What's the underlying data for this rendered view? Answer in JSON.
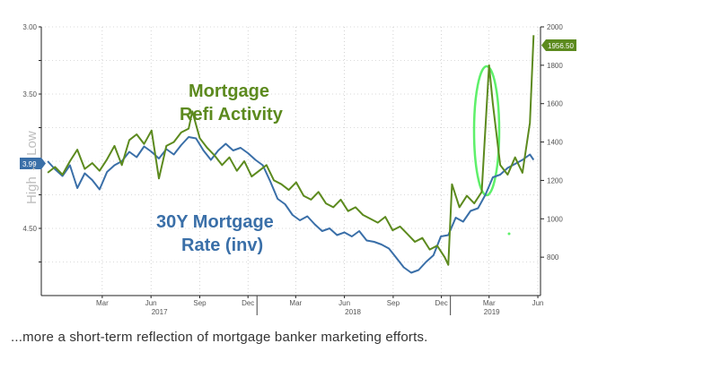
{
  "caption": "...more a short-term reflection of mortgage banker marketing efforts.",
  "colors": {
    "refi": "#5c8a1e",
    "rate": "#3a6fa8",
    "highlight": "#5ef06a",
    "grid": "#b5b5b5"
  },
  "chart_data": {
    "type": "line",
    "annotations": {
      "refi_label": [
        "Mortgage",
        "Refi Activity"
      ],
      "rate_label": [
        "30Y Mortgage",
        "Rate (inv)"
      ],
      "left_axis_title": "High ← Low",
      "highlight": "circled spike in refi activity, early 2019"
    },
    "x_axis": {
      "months": [
        "Mar",
        "Jun",
        "Sep",
        "Dec",
        "Mar",
        "Jun",
        "Sep",
        "Dec",
        "Mar",
        "Jun"
      ],
      "years": [
        "2017",
        "2018",
        "2019"
      ]
    },
    "left_axis": {
      "inverted": true,
      "range": [
        3.0,
        5.0
      ],
      "ticks": [
        "3.00",
        "3.50",
        "4.50"
      ],
      "last_value_label": "3.99"
    },
    "right_axis": {
      "range": [
        600,
        2000
      ],
      "ticks": [
        "2000",
        "1800",
        "1600",
        "1400",
        "1200",
        "1000",
        "800"
      ],
      "last_value_label": "1956.50"
    },
    "grid": true,
    "series": [
      {
        "name": "Mortgage Refi Activity",
        "axis": "right",
        "x": [
          "2016-12-02",
          "2016-12-16",
          "2016-12-30",
          "2017-01-13",
          "2017-01-27",
          "2017-02-10",
          "2017-02-24",
          "2017-03-10",
          "2017-03-24",
          "2017-04-07",
          "2017-04-21",
          "2017-05-05",
          "2017-05-19",
          "2017-06-02",
          "2017-06-16",
          "2017-06-30",
          "2017-07-14",
          "2017-07-28",
          "2017-08-11",
          "2017-08-25",
          "2017-09-01",
          "2017-09-15",
          "2017-09-29",
          "2017-10-13",
          "2017-10-27",
          "2017-11-10",
          "2017-11-24",
          "2017-12-08",
          "2017-12-22",
          "2018-01-05",
          "2018-01-19",
          "2018-02-02",
          "2018-02-16",
          "2018-03-02",
          "2018-03-16",
          "2018-03-30",
          "2018-04-13",
          "2018-04-27",
          "2018-05-11",
          "2018-05-25",
          "2018-06-08",
          "2018-06-22",
          "2018-07-06",
          "2018-07-20",
          "2018-08-03",
          "2018-08-17",
          "2018-08-31",
          "2018-09-14",
          "2018-09-28",
          "2018-10-12",
          "2018-10-26",
          "2018-11-09",
          "2018-11-23",
          "2018-12-07",
          "2018-12-21",
          "2018-12-28",
          "2019-01-04",
          "2019-01-18",
          "2019-02-01",
          "2019-02-15",
          "2019-03-01",
          "2019-03-15",
          "2019-03-22",
          "2019-04-05",
          "2019-04-19",
          "2019-05-03",
          "2019-05-17",
          "2019-05-31",
          "2019-06-07"
        ],
        "values": [
          1240,
          1270,
          1230,
          1300,
          1360,
          1260,
          1290,
          1250,
          1310,
          1380,
          1280,
          1410,
          1440,
          1390,
          1460,
          1210,
          1380,
          1400,
          1450,
          1470,
          1560,
          1420,
          1370,
          1330,
          1280,
          1320,
          1250,
          1300,
          1220,
          1250,
          1280,
          1200,
          1180,
          1150,
          1190,
          1120,
          1100,
          1140,
          1080,
          1060,
          1100,
          1040,
          1060,
          1020,
          1000,
          980,
          1010,
          940,
          960,
          920,
          880,
          900,
          840,
          860,
          800,
          760,
          1180,
          1060,
          1120,
          1080,
          1140,
          1800,
          1600,
          1280,
          1230,
          1320,
          1240,
          1500,
          1956.5
        ]
      },
      {
        "name": "30Y Mortgage Rate (inv)",
        "axis": "left",
        "x": [
          "2016-12-02",
          "2016-12-16",
          "2016-12-30",
          "2017-01-13",
          "2017-01-27",
          "2017-02-10",
          "2017-02-24",
          "2017-03-10",
          "2017-03-24",
          "2017-04-07",
          "2017-04-21",
          "2017-05-05",
          "2017-05-19",
          "2017-06-02",
          "2017-06-16",
          "2017-06-30",
          "2017-07-14",
          "2017-07-28",
          "2017-08-11",
          "2017-08-25",
          "2017-09-08",
          "2017-09-22",
          "2017-10-06",
          "2017-10-20",
          "2017-11-03",
          "2017-11-17",
          "2017-12-01",
          "2017-12-15",
          "2017-12-29",
          "2018-01-12",
          "2018-01-26",
          "2018-02-09",
          "2018-02-23",
          "2018-03-09",
          "2018-03-23",
          "2018-04-06",
          "2018-04-20",
          "2018-05-04",
          "2018-05-18",
          "2018-06-01",
          "2018-06-15",
          "2018-06-29",
          "2018-07-13",
          "2018-07-27",
          "2018-08-10",
          "2018-08-24",
          "2018-09-07",
          "2018-09-21",
          "2018-10-05",
          "2018-10-19",
          "2018-11-02",
          "2018-11-16",
          "2018-11-30",
          "2018-12-14",
          "2018-12-28",
          "2019-01-11",
          "2019-01-25",
          "2019-02-08",
          "2019-02-22",
          "2019-03-08",
          "2019-03-22",
          "2019-04-05",
          "2019-04-19",
          "2019-05-03",
          "2019-05-17",
          "2019-05-31",
          "2019-06-07"
        ],
        "values": [
          4.0,
          4.06,
          4.11,
          4.03,
          4.2,
          4.09,
          4.14,
          4.21,
          4.08,
          4.03,
          4.0,
          3.93,
          3.97,
          3.89,
          3.93,
          3.98,
          3.91,
          3.95,
          3.88,
          3.82,
          3.83,
          3.92,
          3.99,
          3.92,
          3.87,
          3.92,
          3.9,
          3.94,
          3.99,
          4.03,
          4.15,
          4.28,
          4.32,
          4.4,
          4.44,
          4.41,
          4.47,
          4.52,
          4.5,
          4.55,
          4.53,
          4.56,
          4.52,
          4.59,
          4.6,
          4.62,
          4.65,
          4.72,
          4.79,
          4.83,
          4.81,
          4.75,
          4.7,
          4.56,
          4.55,
          4.42,
          4.45,
          4.37,
          4.35,
          4.25,
          4.12,
          4.1,
          4.05,
          4.02,
          3.99,
          3.95,
          3.99
        ]
      }
    ]
  }
}
